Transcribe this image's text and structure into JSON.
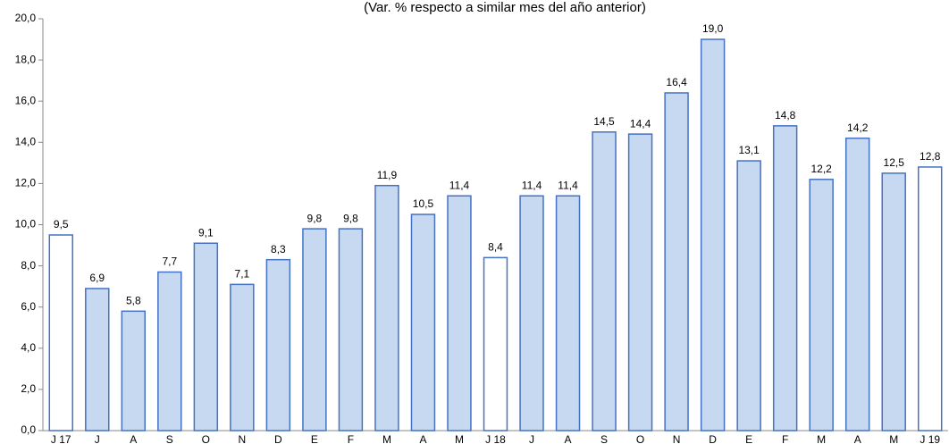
{
  "chart_data": {
    "type": "bar",
    "title": "(Var. % respecto a similar mes del año anterior)",
    "categories": [
      "J 17",
      "J",
      "A",
      "S",
      "O",
      "N",
      "D",
      "E",
      "F",
      "M",
      "A",
      "M",
      "J 18",
      "J",
      "A",
      "S",
      "O",
      "N",
      "D",
      "E",
      "F",
      "M",
      "A",
      "M",
      "J 19"
    ],
    "values": [
      9.5,
      6.9,
      5.8,
      7.7,
      9.1,
      7.1,
      8.3,
      9.8,
      9.8,
      11.9,
      10.5,
      11.4,
      8.4,
      11.4,
      11.4,
      14.5,
      14.4,
      16.4,
      19.0,
      13.1,
      14.8,
      12.2,
      14.2,
      12.5,
      12.8
    ],
    "value_labels": [
      "9,5",
      "6,9",
      "5,8",
      "7,7",
      "9,1",
      "7,1",
      "8,3",
      "9,8",
      "9,8",
      "11,9",
      "10,5",
      "11,4",
      "8,4",
      "11,4",
      "11,4",
      "14,5",
      "14,4",
      "16,4",
      "19,0",
      "13,1",
      "14,8",
      "12,2",
      "14,2",
      "12,5",
      "12,8"
    ],
    "colors": [
      "#ffffff",
      "#c6d9f1",
      "#c6d9f1",
      "#c6d9f1",
      "#c6d9f1",
      "#c6d9f1",
      "#c6d9f1",
      "#c6d9f1",
      "#c6d9f1",
      "#c6d9f1",
      "#c6d9f1",
      "#c6d9f1",
      "#ffffff",
      "#c6d9f1",
      "#c6d9f1",
      "#c6d9f1",
      "#c6d9f1",
      "#c6d9f1",
      "#c6d9f1",
      "#c6d9f1",
      "#c6d9f1",
      "#c6d9f1",
      "#c6d9f1",
      "#c6d9f1",
      "#ffffff"
    ],
    "edge_color": "#4472c4",
    "ylim": [
      0,
      20
    ],
    "yticks": [
      {
        "value": 0,
        "label": "0,0"
      },
      {
        "value": 2,
        "label": "2,0"
      },
      {
        "value": 4,
        "label": "4,0"
      },
      {
        "value": 6,
        "label": "6,0"
      },
      {
        "value": 8,
        "label": "8,0"
      },
      {
        "value": 10,
        "label": "10,0"
      },
      {
        "value": 12,
        "label": "12,0"
      },
      {
        "value": 14,
        "label": "14,0"
      },
      {
        "value": 16,
        "label": "16,0"
      },
      {
        "value": 18,
        "label": "18,0"
      },
      {
        "value": 20,
        "label": "20,0"
      }
    ],
    "grid": false
  }
}
